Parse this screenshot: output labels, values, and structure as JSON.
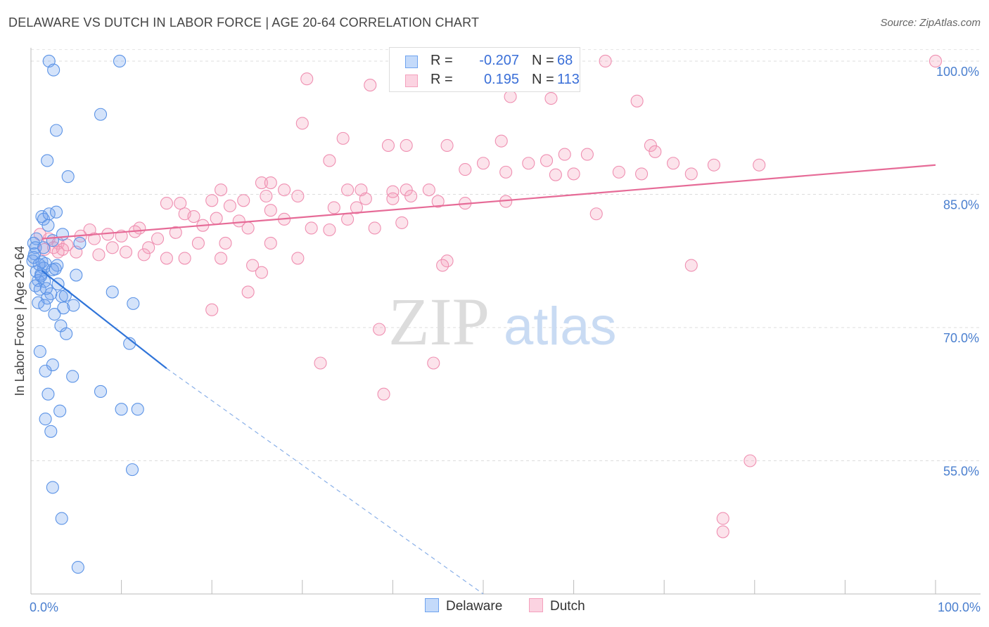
{
  "title": "DELAWARE VS DUTCH IN LABOR FORCE | AGE 20-64 CORRELATION CHART",
  "source": "Source: ZipAtlas.com",
  "watermark": {
    "zip": "ZIP",
    "atlas": "atlas"
  },
  "legend": {
    "rows": [
      {
        "r_label": "R =",
        "r_value": "-0.207",
        "n_label": "N =",
        "n_value": "68",
        "color": "#6fa3ef"
      },
      {
        "r_label": "R =",
        "r_value": "0.195",
        "n_label": "N =",
        "n_value": "113",
        "color": "#f4a1bd"
      }
    ]
  },
  "bottom_legend": [
    {
      "label": "Delaware",
      "color": "#6fa3ef"
    },
    {
      "label": "Dutch",
      "color": "#f4a1bd"
    }
  ],
  "chart_data": {
    "type": "scatter",
    "title": "DELAWARE VS DUTCH IN LABOR FORCE | AGE 20-64 CORRELATION CHART",
    "xlabel": "",
    "ylabel": "In Labor Force | Age 20-64",
    "xlim": [
      0,
      100
    ],
    "ylim": [
      40,
      101.5
    ],
    "x_tick_labels": [
      "0.0%",
      "100.0%"
    ],
    "y_ticks": [
      55,
      70,
      85,
      100
    ],
    "y_tick_labels": [
      "55.0%",
      "70.0%",
      "85.0%",
      "100.0%"
    ],
    "grid": true,
    "series": [
      {
        "name": "Delaware",
        "color": "#6fa3ef",
        "trend": {
          "x0": 1.2,
          "y0": 76.4,
          "x1": 15,
          "y1": 65.4,
          "dash_x1": 50,
          "dash_y1": 40
        },
        "points": [
          [
            2.0,
            100
          ],
          [
            9.8,
            100
          ],
          [
            2.5,
            99
          ],
          [
            7.7,
            94
          ],
          [
            2.8,
            92.2
          ],
          [
            1.8,
            88.8
          ],
          [
            4.1,
            87
          ],
          [
            1.2,
            82.5
          ],
          [
            1.4,
            82.2
          ],
          [
            2.0,
            82.8
          ],
          [
            2.8,
            83
          ],
          [
            1.9,
            81.5
          ],
          [
            3.5,
            80.5
          ],
          [
            0.6,
            80
          ],
          [
            0.3,
            79.5
          ],
          [
            0.5,
            79
          ],
          [
            1.4,
            79
          ],
          [
            2.4,
            79.8
          ],
          [
            5.4,
            79.5
          ],
          [
            0.4,
            78.3
          ],
          [
            0.2,
            77.5
          ],
          [
            1.2,
            77.4
          ],
          [
            1.6,
            77.2
          ],
          [
            2.9,
            77
          ],
          [
            1.4,
            76.7
          ],
          [
            2.4,
            76.5
          ],
          [
            0.6,
            76.3
          ],
          [
            1.1,
            76
          ],
          [
            5.0,
            75.9
          ],
          [
            0.8,
            75.3
          ],
          [
            1.5,
            75.2
          ],
          [
            3.0,
            74.9
          ],
          [
            0.5,
            74.7
          ],
          [
            1.0,
            74.3
          ],
          [
            2.2,
            73.8
          ],
          [
            3.4,
            73.5
          ],
          [
            9.0,
            74
          ],
          [
            1.8,
            73.3
          ],
          [
            0.8,
            72.8
          ],
          [
            1.5,
            72.5
          ],
          [
            3.6,
            72.2
          ],
          [
            11.3,
            72.7
          ],
          [
            4.7,
            72.5
          ],
          [
            2.6,
            71.5
          ],
          [
            3.3,
            70.2
          ],
          [
            3.9,
            69.3
          ],
          [
            10.9,
            68.2
          ],
          [
            1.0,
            67.3
          ],
          [
            2.4,
            65.8
          ],
          [
            1.6,
            65.1
          ],
          [
            4.6,
            64.5
          ],
          [
            1.9,
            62.5
          ],
          [
            7.7,
            62.8
          ],
          [
            10.0,
            60.8
          ],
          [
            11.8,
            60.8
          ],
          [
            3.2,
            60.6
          ],
          [
            1.6,
            59.7
          ],
          [
            2.2,
            58.3
          ],
          [
            11.2,
            54
          ],
          [
            2.4,
            52
          ],
          [
            3.4,
            48.5
          ],
          [
            5.2,
            43
          ],
          [
            0.3,
            77.9
          ],
          [
            1.1,
            75.8
          ],
          [
            2.7,
            76.6
          ],
          [
            0.9,
            77.1
          ],
          [
            1.7,
            74.4
          ],
          [
            3.8,
            73.6
          ]
        ]
      },
      {
        "name": "Dutch",
        "color": "#f4a1bd",
        "trend": {
          "x0": 1.2,
          "y0": 80.0,
          "x1": 100,
          "y1": 88.3
        },
        "points": [
          [
            63.5,
            100
          ],
          [
            100,
            100
          ],
          [
            30.5,
            98
          ],
          [
            37.5,
            97.3
          ],
          [
            57.5,
            95.8
          ],
          [
            53,
            96
          ],
          [
            67,
            95.5
          ],
          [
            30,
            93
          ],
          [
            34.5,
            91.3
          ],
          [
            52,
            91
          ],
          [
            39.5,
            90.5
          ],
          [
            41.5,
            90.5
          ],
          [
            68.5,
            90.5
          ],
          [
            46,
            90.5
          ],
          [
            69,
            89.8
          ],
          [
            59,
            89.5
          ],
          [
            61.5,
            89.5
          ],
          [
            57,
            88.8
          ],
          [
            55,
            88.5
          ],
          [
            71,
            88.5
          ],
          [
            75.5,
            88.3
          ],
          [
            80.5,
            88.3
          ],
          [
            33,
            88.8
          ],
          [
            50,
            88.5
          ],
          [
            48,
            87.8
          ],
          [
            52.5,
            87.5
          ],
          [
            65,
            87.5
          ],
          [
            67.5,
            87.3
          ],
          [
            58,
            87.2
          ],
          [
            60,
            87.3
          ],
          [
            73,
            87.3
          ],
          [
            25.5,
            86.3
          ],
          [
            26.5,
            86.3
          ],
          [
            21,
            85.5
          ],
          [
            28,
            85.5
          ],
          [
            35,
            85.5
          ],
          [
            36.5,
            85.5
          ],
          [
            41.5,
            85.5
          ],
          [
            44,
            85.5
          ],
          [
            40,
            85.3
          ],
          [
            42,
            84.8
          ],
          [
            26,
            84.8
          ],
          [
            29.5,
            84.8
          ],
          [
            37,
            84.5
          ],
          [
            40,
            84.5
          ],
          [
            23.5,
            84.3
          ],
          [
            20,
            84.3
          ],
          [
            15,
            84
          ],
          [
            16.5,
            84
          ],
          [
            22,
            83.7
          ],
          [
            26.5,
            83.2
          ],
          [
            33.5,
            83.5
          ],
          [
            36,
            83.5
          ],
          [
            45,
            84.2
          ],
          [
            48,
            84
          ],
          [
            52.5,
            84.2
          ],
          [
            17,
            82.8
          ],
          [
            18,
            82.5
          ],
          [
            20.5,
            82.3
          ],
          [
            23,
            82
          ],
          [
            62.5,
            82.8
          ],
          [
            28,
            82.2
          ],
          [
            35,
            82.2
          ],
          [
            41,
            81.8
          ],
          [
            19,
            81.5
          ],
          [
            24,
            81.2
          ],
          [
            31,
            81.2
          ],
          [
            33,
            81
          ],
          [
            38,
            81.2
          ],
          [
            12,
            81.2
          ],
          [
            6.5,
            81
          ],
          [
            8.5,
            80.5
          ],
          [
            11.5,
            80.8
          ],
          [
            16,
            80.7
          ],
          [
            5.5,
            80.3
          ],
          [
            7,
            80
          ],
          [
            10,
            80.3
          ],
          [
            14,
            80
          ],
          [
            1,
            80.5
          ],
          [
            2,
            80
          ],
          [
            3,
            79.5
          ],
          [
            4,
            79.3
          ],
          [
            18.5,
            79.5
          ],
          [
            21.5,
            79.5
          ],
          [
            26.5,
            79.5
          ],
          [
            9,
            79
          ],
          [
            13,
            79
          ],
          [
            2.5,
            79
          ],
          [
            1.5,
            78.8
          ],
          [
            3.5,
            78.8
          ],
          [
            5,
            78.5
          ],
          [
            7.5,
            78.2
          ],
          [
            10.5,
            78.5
          ],
          [
            12.5,
            78.2
          ],
          [
            15,
            77.8
          ],
          [
            17,
            77.8
          ],
          [
            21,
            77.8
          ],
          [
            29.5,
            77.8
          ],
          [
            3,
            78.5
          ],
          [
            46,
            77.5
          ],
          [
            24.5,
            77
          ],
          [
            45.5,
            77
          ],
          [
            73,
            77
          ],
          [
            25.5,
            76.2
          ],
          [
            24,
            74
          ],
          [
            20,
            72
          ],
          [
            32,
            66
          ],
          [
            44.5,
            66
          ],
          [
            38.5,
            69.8
          ],
          [
            39,
            62.5
          ],
          [
            79.5,
            55
          ],
          [
            76.5,
            48.5
          ],
          [
            76.5,
            47
          ]
        ]
      }
    ]
  }
}
